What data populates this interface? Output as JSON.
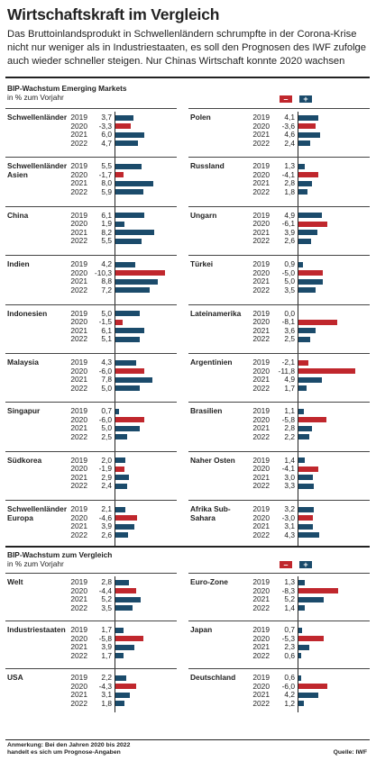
{
  "header": {
    "title": "Wirtschaftskraft im Vergleich",
    "intro": "Das Bruttoinlandsprodukt in Schwellenländern schrumpfte in der Corona-Krise nicht nur weniger als in Industriestaaten, es soll den Prognosen des IWF zufolge auch wieder schneller steigen. Nur Chinas Wirtschaft konnte 2020 wachsen"
  },
  "colors": {
    "negative": "#c0272d",
    "positive": "#1b4b6b"
  },
  "legend": {
    "minus": "–",
    "plus": "+"
  },
  "sections": [
    {
      "heading": "BIP-Wachstum Emerging Markets",
      "subheading": "in % zum Vorjahr"
    },
    {
      "heading": "BIP-Wachstum zum Vergleich",
      "subheading": "in % zum Vorjahr"
    }
  ],
  "chart_data": [
    {
      "type": "bar",
      "title": "BIP-Wachstum Emerging Markets",
      "ylabel": "in % zum Vorjahr",
      "groups_left": [
        {
          "name": "Schwellenländer",
          "values": [
            [
              "2019",
              "3,7"
            ],
            [
              "2020",
              "-3,3"
            ],
            [
              "2021",
              "6,0"
            ],
            [
              "2022",
              "4,7"
            ]
          ]
        },
        {
          "name": "Schwellenländer Asien",
          "values": [
            [
              "2019",
              "5,5"
            ],
            [
              "2020",
              "-1,7"
            ],
            [
              "2021",
              "8,0"
            ],
            [
              "2022",
              "5,9"
            ]
          ]
        },
        {
          "name": "China",
          "values": [
            [
              "2019",
              "6,1"
            ],
            [
              "2020",
              "1,9"
            ],
            [
              "2021",
              "8,2"
            ],
            [
              "2022",
              "5,5"
            ]
          ]
        },
        {
          "name": "Indien",
          "values": [
            [
              "2019",
              "4,2"
            ],
            [
              "2020",
              "-10,3"
            ],
            [
              "2021",
              "8,8"
            ],
            [
              "2022",
              "7,2"
            ]
          ]
        },
        {
          "name": "Indonesien",
          "values": [
            [
              "2019",
              "5,0"
            ],
            [
              "2020",
              "-1,5"
            ],
            [
              "2021",
              "6,1"
            ],
            [
              "2022",
              "5,1"
            ]
          ]
        },
        {
          "name": "Malaysia",
          "values": [
            [
              "2019",
              "4,3"
            ],
            [
              "2020",
              "-6,0"
            ],
            [
              "2021",
              "7,8"
            ],
            [
              "2022",
              "5,0"
            ]
          ]
        },
        {
          "name": "Singapur",
          "values": [
            [
              "2019",
              "0,7"
            ],
            [
              "2020",
              "-6,0"
            ],
            [
              "2021",
              "5,0"
            ],
            [
              "2022",
              "2,5"
            ]
          ]
        },
        {
          "name": "Südkorea",
          "values": [
            [
              "2019",
              "2,0"
            ],
            [
              "2020",
              "-1,9"
            ],
            [
              "2021",
              "2,9"
            ],
            [
              "2022",
              "2,4"
            ]
          ]
        },
        {
          "name": "Schwellenländer Europa",
          "values": [
            [
              "2019",
              "2,1"
            ],
            [
              "2020",
              "-4,6"
            ],
            [
              "2021",
              "3,9"
            ],
            [
              "2022",
              "2,6"
            ]
          ]
        }
      ],
      "groups_right": [
        {
          "name": "Polen",
          "values": [
            [
              "2019",
              "4,1"
            ],
            [
              "2020",
              "-3,6"
            ],
            [
              "2021",
              "4,6"
            ],
            [
              "2022",
              "2,4"
            ]
          ]
        },
        {
          "name": "Russland",
          "values": [
            [
              "2019",
              "1,3"
            ],
            [
              "2020",
              "-4,1"
            ],
            [
              "2021",
              "2,8"
            ],
            [
              "2022",
              "1,8"
            ]
          ]
        },
        {
          "name": "Ungarn",
          "values": [
            [
              "2019",
              "4,9"
            ],
            [
              "2020",
              "-6,1"
            ],
            [
              "2021",
              "3,9"
            ],
            [
              "2022",
              "2,6"
            ]
          ]
        },
        {
          "name": "Türkei",
          "values": [
            [
              "2019",
              "0,9"
            ],
            [
              "2020",
              "-5,0"
            ],
            [
              "2021",
              "5,0"
            ],
            [
              "2022",
              "3,5"
            ]
          ]
        },
        {
          "name": "Lateinamerika",
          "values": [
            [
              "2019",
              "0,0"
            ],
            [
              "2020",
              "-8,1"
            ],
            [
              "2021",
              "3,6"
            ],
            [
              "2022",
              "2,5"
            ]
          ]
        },
        {
          "name": "Argentinien",
          "values": [
            [
              "2019",
              "-2,1"
            ],
            [
              "2020",
              "-11,8"
            ],
            [
              "2021",
              "4,9"
            ],
            [
              "2022",
              "1,7"
            ]
          ]
        },
        {
          "name": "Brasilien",
          "values": [
            [
              "2019",
              "1,1"
            ],
            [
              "2020",
              "-5,8"
            ],
            [
              "2021",
              "2,8"
            ],
            [
              "2022",
              "2,2"
            ]
          ]
        },
        {
          "name": "Naher Osten",
          "values": [
            [
              "2019",
              "1,4"
            ],
            [
              "2020",
              "-4,1"
            ],
            [
              "2021",
              "3,0"
            ],
            [
              "2022",
              "3,3"
            ]
          ]
        },
        {
          "name": "Afrika Sub-Sahara",
          "values": [
            [
              "2019",
              "3,2"
            ],
            [
              "2020",
              "-3,0"
            ],
            [
              "2021",
              "3,1"
            ],
            [
              "2022",
              "4,3"
            ]
          ]
        }
      ]
    },
    {
      "type": "bar",
      "title": "BIP-Wachstum zum Vergleich",
      "ylabel": "in % zum Vorjahr",
      "groups_left": [
        {
          "name": "Welt",
          "values": [
            [
              "2019",
              "2,8"
            ],
            [
              "2020",
              "-4,4"
            ],
            [
              "2021",
              "5,2"
            ],
            [
              "2022",
              "3,5"
            ]
          ]
        },
        {
          "name": "Industriestaaten",
          "values": [
            [
              "2019",
              "1,7"
            ],
            [
              "2020",
              "-5,8"
            ],
            [
              "2021",
              "3,9"
            ],
            [
              "2022",
              "1,7"
            ]
          ]
        },
        {
          "name": "USA",
          "values": [
            [
              "2019",
              "2,2"
            ],
            [
              "2020",
              "-4,3"
            ],
            [
              "2021",
              "3,1"
            ],
            [
              "2022",
              "1,8"
            ]
          ]
        }
      ],
      "groups_right": [
        {
          "name": "Euro-Zone",
          "values": [
            [
              "2019",
              "1,3"
            ],
            [
              "2020",
              "-8,3"
            ],
            [
              "2021",
              "5,2"
            ],
            [
              "2022",
              "1,4"
            ]
          ]
        },
        {
          "name": "Japan",
          "values": [
            [
              "2019",
              "0,7"
            ],
            [
              "2020",
              "-5,3"
            ],
            [
              "2021",
              "2,3"
            ],
            [
              "2022",
              "0,6"
            ]
          ]
        },
        {
          "name": "Deutschland",
          "values": [
            [
              "2019",
              "0,6"
            ],
            [
              "2020",
              "-6,0"
            ],
            [
              "2021",
              "4,2"
            ],
            [
              "2022",
              "1,2"
            ]
          ]
        }
      ]
    }
  ],
  "footer": {
    "note_line1": "Anmerkung: Bei den Jahren 2020 bis 2022",
    "note_line2": "handelt es sich um Prognose-Angaben",
    "source": "Quelle: IWF"
  }
}
